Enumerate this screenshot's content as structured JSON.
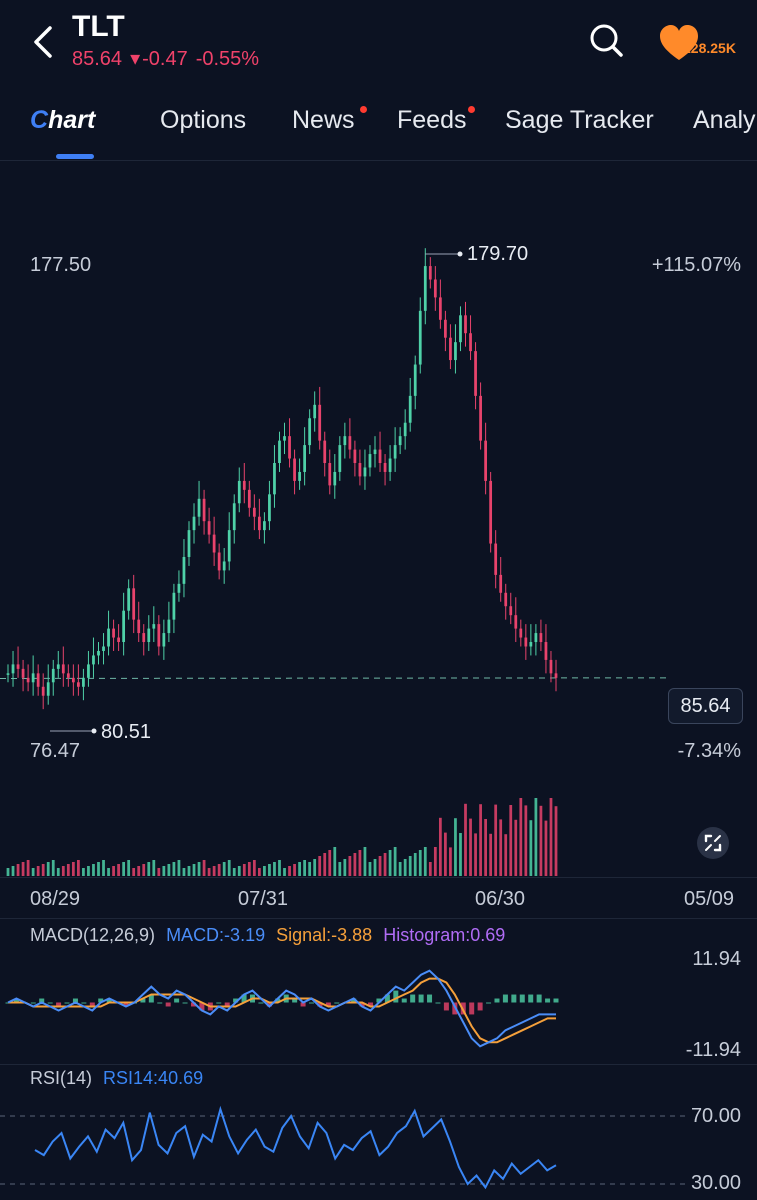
{
  "header": {
    "symbol": "TLT",
    "price": "85.64",
    "change": "-0.47",
    "change_pct": "-0.55%",
    "favorites_count": "128.25K",
    "icons": [
      "back-icon",
      "search-icon",
      "heart-icon"
    ]
  },
  "tabs": [
    {
      "label": "Chart",
      "active": true,
      "badge": false
    },
    {
      "label": "Options",
      "active": false,
      "badge": false
    },
    {
      "label": "News",
      "active": false,
      "badge": true
    },
    {
      "label": "Feeds",
      "active": false,
      "badge": true
    },
    {
      "label": "Sage Tracker",
      "active": false,
      "badge": false
    },
    {
      "label": "Analy",
      "active": false,
      "badge": false
    }
  ],
  "colors": {
    "background": "#0c1222",
    "up": "#4fd1a8",
    "down": "#e8436c",
    "accent": "#3f7ff5",
    "macd_line": "#4a8df8",
    "signal_line": "#f5a03b",
    "histogram_label": "#b06cf5",
    "rsi_line": "#3a86f5"
  },
  "chart": {
    "top_left_price": "177.50",
    "top_right_pct": "+115.07%",
    "high_marker": "179.70",
    "low_marker": "80.51",
    "bottom_left_price": "76.47",
    "bottom_right_pct": "-7.34%",
    "last_price_tag": "85.64",
    "x_ticks": [
      "08/29",
      "07/31",
      "06/30",
      "05/09"
    ]
  },
  "macd": {
    "label": "MACD(12,26,9)",
    "macd_value": "MACD:-3.19",
    "signal_value": "Signal:-3.88",
    "histogram_value": "Histogram:0.69",
    "y_top": "11.94",
    "y_bottom": "-11.94"
  },
  "rsi": {
    "label": "RSI(14)",
    "value": "RSI14:40.69",
    "level_high": "70.00",
    "level_low": "30.00"
  },
  "chart_data": [
    {
      "type": "line",
      "title": "TLT",
      "series": [
        {
          "name": "TLT",
          "x": [
            0,
            5,
            10,
            15,
            20,
            25,
            30,
            35,
            40,
            45,
            50,
            55,
            60,
            65,
            70,
            75,
            80,
            85,
            90,
            95,
            100,
            105,
            110,
            115,
            120,
            125,
            130,
            135,
            140,
            145,
            150,
            155,
            160,
            165,
            170,
            175,
            180,
            185,
            190,
            195,
            200,
            205,
            210,
            215,
            220,
            225,
            230,
            235,
            240,
            245,
            250,
            255,
            260,
            265,
            270,
            275,
            280,
            285,
            290,
            295,
            300,
            305,
            310,
            315,
            320,
            325,
            330,
            335,
            340,
            345,
            350,
            355,
            360,
            365,
            370,
            375,
            380,
            385,
            390,
            395,
            400,
            405,
            410,
            415,
            420,
            425,
            430,
            435,
            440,
            445,
            450,
            455,
            460,
            465,
            470,
            475,
            480,
            485,
            490,
            495,
            500,
            505,
            510,
            515,
            520,
            525,
            530,
            535,
            540,
            545
          ],
          "values": [
            86,
            88,
            87,
            85,
            84,
            86,
            83,
            81,
            84,
            87,
            88,
            86,
            85,
            84,
            83,
            85,
            88,
            90,
            91,
            92,
            96,
            94,
            93,
            100,
            105,
            98,
            95,
            93,
            96,
            97,
            92,
            95,
            98,
            104,
            106,
            112,
            118,
            121,
            125,
            120,
            117,
            113,
            109,
            111,
            118,
            124,
            129,
            127,
            123,
            121,
            118,
            120,
            126,
            133,
            138,
            139,
            134,
            129,
            131,
            137,
            143,
            146,
            138,
            133,
            128,
            131,
            137,
            139,
            136,
            133,
            130,
            132,
            135,
            136,
            133,
            131,
            134,
            137,
            139,
            142,
            148,
            155,
            167,
            177,
            174,
            170,
            165,
            161,
            156,
            160,
            166,
            162,
            158,
            148,
            138,
            129,
            115,
            108,
            104,
            101,
            99,
            96,
            94,
            92,
            93,
            95,
            93,
            89,
            86,
            85
          ]
        }
      ],
      "ylim": [
        76.47,
        179.7
      ],
      "x_tick_labels": [
        "08/29",
        "07/31",
        "06/30",
        "05/09"
      ],
      "annotations": [
        "179.70",
        "80.51",
        "85.64"
      ]
    },
    {
      "type": "line",
      "title": "MACD(12,26,9)",
      "series": [
        {
          "name": "MACD",
          "values": [
            0,
            1,
            0,
            -1,
            0,
            -1,
            -2,
            -1,
            0,
            -1,
            -2,
            0,
            1,
            0,
            -1,
            0,
            2,
            4,
            2,
            1,
            3,
            2,
            0,
            -2,
            -3,
            -1,
            -2,
            0,
            2,
            3,
            1,
            -1,
            1,
            3,
            2,
            0,
            1,
            -1,
            -2,
            -1,
            0,
            1,
            -1,
            -2,
            0,
            2,
            4,
            3,
            5,
            7,
            8,
            6,
            3,
            -1,
            -5,
            -9,
            -11,
            -10,
            -9,
            -7,
            -6,
            -5,
            -4,
            -3,
            -3,
            -3
          ]
        },
        {
          "name": "Signal",
          "values": [
            0,
            0,
            0,
            -1,
            -1,
            -1,
            -1,
            -1,
            -1,
            -1,
            -1,
            -1,
            0,
            0,
            0,
            0,
            1,
            2,
            2,
            2,
            2,
            2,
            1,
            0,
            -1,
            -1,
            -1,
            -1,
            0,
            1,
            1,
            0,
            0,
            1,
            1,
            1,
            1,
            0,
            -1,
            -1,
            0,
            0,
            0,
            -1,
            -1,
            0,
            1,
            2,
            3,
            5,
            6,
            6,
            5,
            2,
            -2,
            -6,
            -9,
            -10,
            -10,
            -9,
            -8,
            -7,
            -6,
            -5,
            -4,
            -4
          ]
        }
      ],
      "ylim": [
        -11.94,
        11.94
      ]
    },
    {
      "type": "line",
      "title": "RSI(14)",
      "series": [
        {
          "name": "RSI14",
          "values": [
            50,
            47,
            55,
            60,
            45,
            52,
            58,
            49,
            62,
            57,
            66,
            44,
            50,
            72,
            53,
            48,
            60,
            64,
            46,
            59,
            55,
            74,
            58,
            48,
            56,
            62,
            52,
            49,
            63,
            70,
            58,
            51,
            66,
            60,
            45,
            53,
            50,
            57,
            61,
            47,
            52,
            60,
            64,
            73,
            58,
            63,
            68,
            55,
            40,
            30,
            35,
            28,
            38,
            33,
            42,
            36,
            40,
            44,
            38,
            41
          ]
        }
      ],
      "ylim": [
        30,
        70
      ],
      "levels": [
        70,
        30
      ]
    }
  ]
}
